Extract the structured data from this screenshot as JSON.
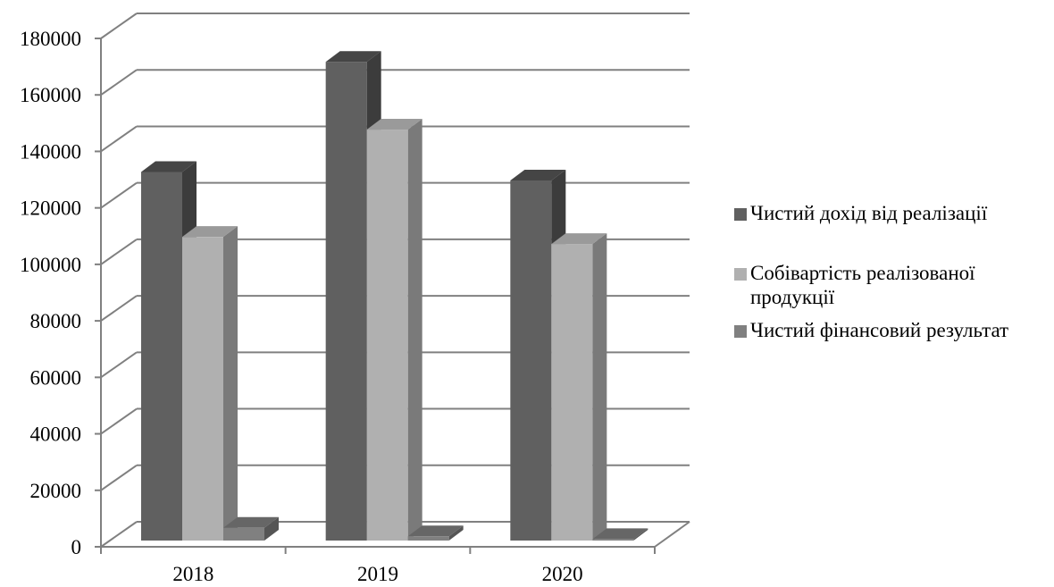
{
  "chart_data": {
    "type": "bar",
    "title": "",
    "xlabel": "",
    "ylabel": "",
    "categories": [
      "2018",
      "2019",
      "2020"
    ],
    "series": [
      {
        "name": "Чистий дохід від реалізації",
        "values": [
          130500,
          169500,
          127500
        ],
        "color": "#606060",
        "top_color": "#454545",
        "side_color": "#3c3c3c"
      },
      {
        "name": "Собівартість реалізованої продукції",
        "values": [
          107500,
          145500,
          105000
        ],
        "color": "#b0b0b0",
        "top_color": "#9a9a9a",
        "side_color": "#7a7a7a"
      },
      {
        "name": "Чистий фінансовий результат",
        "values": [
          4500,
          1500,
          500
        ],
        "color": "#808080",
        "top_color": "#666666",
        "side_color": "#555555"
      }
    ],
    "ylim": [
      0,
      180000
    ],
    "yticks": [
      "0",
      "20000",
      "40000",
      "60000",
      "80000",
      "100000",
      "120000",
      "140000",
      "160000",
      "180000"
    ],
    "grid": true,
    "legend_position": "right"
  }
}
